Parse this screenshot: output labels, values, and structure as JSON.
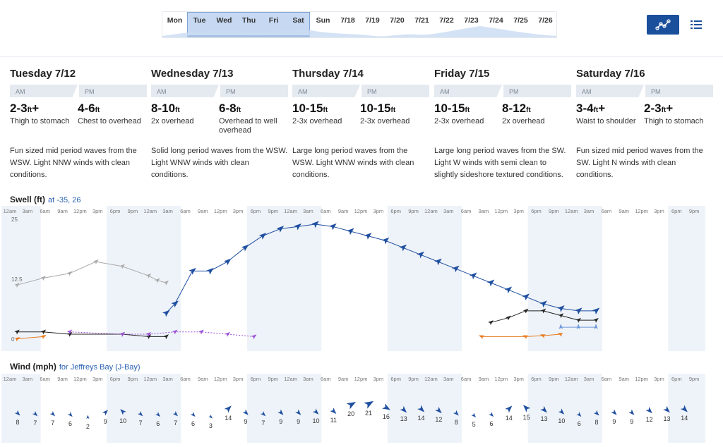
{
  "strip": {
    "days": [
      "Mon",
      "Tue",
      "Wed",
      "Thu",
      "Fri",
      "Sat",
      "Sun",
      "7/18",
      "7/19",
      "7/20",
      "7/21",
      "7/22",
      "7/23",
      "7/24",
      "7/25",
      "7/26"
    ],
    "selected": [
      "Tue",
      "Wed",
      "Thu",
      "Fri",
      "Sat"
    ]
  },
  "view_toggle": {
    "active": "chart"
  },
  "days": [
    {
      "title": "Tuesday 7/12",
      "am_label": "AM",
      "pm_label": "PM",
      "am_height": "2-3",
      "am_unit": "ft",
      "am_plus": "+",
      "am_desc": "Thigh to stomach",
      "pm_height": "4-6",
      "pm_unit": "ft",
      "pm_plus": "",
      "pm_desc": "Chest to overhead",
      "text": "Fun sized mid period waves from the WSW. Light NNW winds with clean conditions."
    },
    {
      "title": "Wednesday 7/13",
      "am_label": "AM",
      "pm_label": "PM",
      "am_height": "8-10",
      "am_unit": "ft",
      "am_plus": "",
      "am_desc": "2x overhead",
      "pm_height": "6-8",
      "pm_unit": "ft",
      "pm_plus": "",
      "pm_desc": "Overhead to well overhead",
      "text": "Solid long period waves from the WSW. Light WNW winds with clean conditions."
    },
    {
      "title": "Thursday 7/14",
      "am_label": "AM",
      "pm_label": "PM",
      "am_height": "10-15",
      "am_unit": "ft",
      "am_plus": "",
      "am_desc": "2-3x overhead",
      "pm_height": "10-15",
      "pm_unit": "ft",
      "pm_plus": "",
      "pm_desc": "2-3x overhead",
      "text": "Large long period waves from the WSW. Light WNW winds with clean conditions."
    },
    {
      "title": "Friday 7/15",
      "am_label": "AM",
      "pm_label": "PM",
      "am_height": "10-15",
      "am_unit": "ft",
      "am_plus": "",
      "am_desc": "2-3x overhead",
      "pm_height": "8-12",
      "pm_unit": "ft",
      "pm_plus": "",
      "pm_desc": "2x overhead",
      "text": "Large long period waves from the SW. Light W winds with semi clean to slightly sideshore textured conditions."
    },
    {
      "title": "Saturday 7/16",
      "am_label": "AM",
      "pm_label": "PM",
      "am_height": "3-4",
      "am_unit": "ft",
      "am_plus": "+",
      "am_desc": "Waist to shoulder",
      "pm_height": "2-3",
      "pm_unit": "ft",
      "pm_plus": "+",
      "pm_desc": "Thigh to stomach",
      "text": "Fun sized mid period waves from the SW. Light N winds with clean conditions."
    }
  ],
  "swell": {
    "title": "Swell (ft)",
    "subtitle": "at -35, 26",
    "time_labels": [
      "12am",
      "3am",
      "6am",
      "9am",
      "12pm",
      "3pm",
      "6pm",
      "9pm"
    ],
    "y_labels": [
      "25",
      "12.5",
      "0"
    ]
  },
  "wind": {
    "title": "Wind (mph)",
    "subtitle": "for Jeffreys Bay (J-Bay)",
    "time_labels": [
      "12am",
      "3am",
      "6am",
      "9am",
      "12pm",
      "3pm",
      "6pm",
      "9pm"
    ],
    "speeds": [
      8,
      7,
      7,
      6,
      2,
      9,
      10,
      7,
      6,
      7,
      6,
      3,
      14,
      9,
      7,
      9,
      9,
      10,
      11,
      20,
      21,
      16,
      13,
      14,
      12,
      8,
      5,
      6,
      14,
      15,
      13,
      10,
      6,
      8,
      9,
      9,
      12,
      13,
      14
    ],
    "directions": [
      135,
      135,
      135,
      135,
      0,
      45,
      315,
      135,
      135,
      135,
      135,
      135,
      45,
      135,
      135,
      135,
      135,
      135,
      135,
      60,
      60,
      120,
      135,
      135,
      135,
      135,
      135,
      135,
      45,
      315,
      135,
      135,
      135,
      135,
      135,
      135,
      135,
      135,
      135
    ]
  },
  "chart_data": {
    "type": "line",
    "title": "Swell (ft)",
    "xlabel": "",
    "ylabel": "",
    "ylim": [
      0,
      25
    ],
    "series": [
      {
        "color": "#aaaaaa",
        "values": [
          [
            0,
            12
          ],
          [
            1.5,
            13.5
          ],
          [
            3,
            14.5
          ],
          [
            4.5,
            17
          ],
          [
            6,
            16
          ],
          [
            7.5,
            14
          ],
          [
            8,
            13
          ],
          [
            8.5,
            12.5
          ]
        ]
      },
      {
        "color": "#1f4fa0",
        "values": [
          [
            8.5,
            6
          ],
          [
            9,
            8
          ],
          [
            10,
            15
          ],
          [
            11,
            15
          ],
          [
            12,
            17
          ],
          [
            13,
            20
          ],
          [
            14,
            22.5
          ],
          [
            15,
            24
          ],
          [
            16,
            24.5
          ],
          [
            17,
            25
          ],
          [
            18,
            24.5
          ],
          [
            19,
            23.5
          ],
          [
            20,
            22.5
          ],
          [
            21,
            21.5
          ],
          [
            22,
            20
          ],
          [
            23,
            18.5
          ],
          [
            24,
            17
          ],
          [
            25,
            15.5
          ],
          [
            26,
            14
          ],
          [
            27,
            12.5
          ],
          [
            28,
            11
          ],
          [
            29,
            9.5
          ],
          [
            30,
            8
          ],
          [
            31,
            7
          ],
          [
            32,
            6.5
          ],
          [
            33,
            6.5
          ]
        ]
      },
      {
        "color": "#222222",
        "values": [
          [
            0,
            2
          ],
          [
            1.5,
            2
          ],
          [
            3,
            1.5
          ],
          [
            6,
            1.5
          ],
          [
            7.5,
            1
          ],
          [
            8.5,
            1
          ]
        ]
      },
      {
        "color": "#9a4fd6",
        "values": [
          [
            3,
            2
          ],
          [
            6,
            1.5
          ],
          [
            7.5,
            1.5
          ],
          [
            9,
            2
          ],
          [
            10.5,
            2
          ],
          [
            12,
            1.5
          ],
          [
            13.5,
            1
          ]
        ]
      },
      {
        "color": "#222222",
        "values": [
          [
            27,
            4
          ],
          [
            28,
            5
          ],
          [
            29,
            6.5
          ],
          [
            30,
            6.5
          ],
          [
            31,
            5.5
          ],
          [
            32,
            4.5
          ],
          [
            33,
            4.5
          ]
        ]
      },
      {
        "color": "#e87b1f",
        "values": [
          [
            0,
            0.5
          ],
          [
            1.5,
            1
          ]
        ]
      },
      {
        "color": "#e87b1f",
        "values": [
          [
            26.5,
            1
          ],
          [
            29,
            1
          ],
          [
            30,
            1.2
          ],
          [
            31,
            1.5
          ]
        ]
      },
      {
        "color": "#6f98d9",
        "values": [
          [
            31,
            3
          ],
          [
            32,
            3
          ],
          [
            33,
            3
          ]
        ]
      }
    ]
  },
  "colors": {
    "accent": "#1a4f9c",
    "night_band": "#eef3f9",
    "wind_arrow": "#1f4fa0"
  }
}
